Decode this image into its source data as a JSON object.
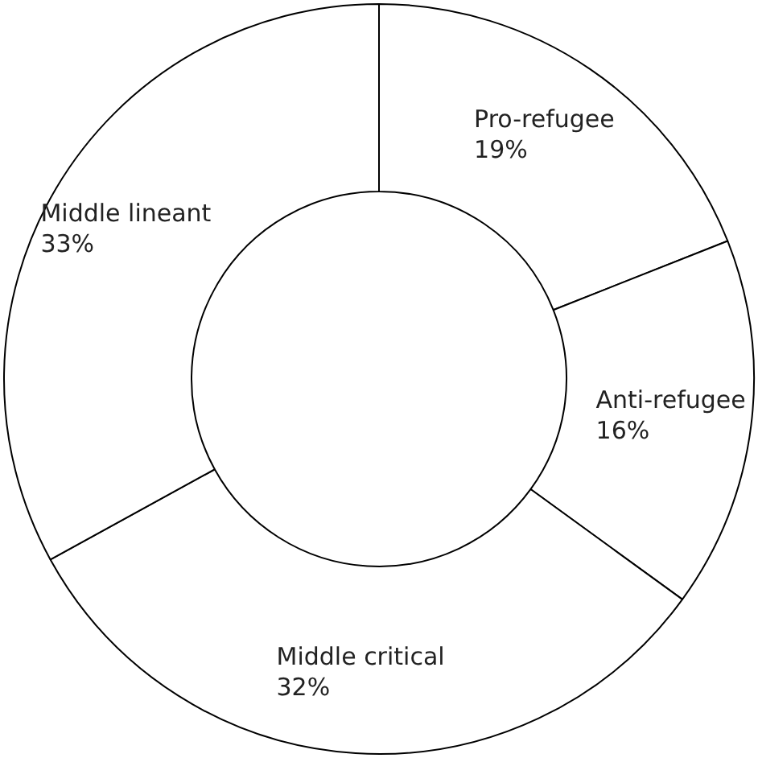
{
  "chart_data": {
    "type": "donut",
    "categories": [
      "Pro-refugee",
      "Anti-refugee",
      "Middle critical",
      "Middle lineant"
    ],
    "values": [
      19,
      16,
      32,
      33
    ],
    "colors": [
      "#ffffff",
      "#ffffff",
      "#ffffff",
      "#ffffff"
    ],
    "value_labels": [
      "19%",
      "16%",
      "32%",
      "33%"
    ],
    "legend": false
  }
}
